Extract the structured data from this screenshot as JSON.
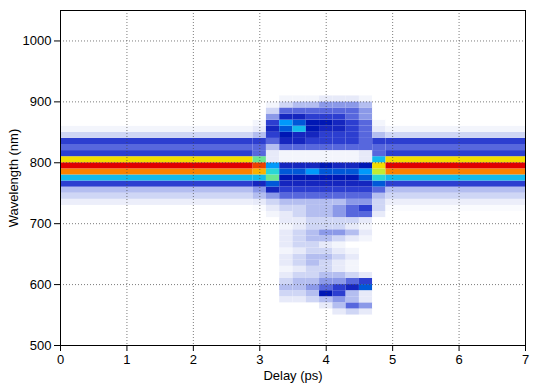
{
  "chart_data": {
    "type": "heatmap",
    "x_label": "Delay (ps)",
    "y_label": "Wavelength (nm)",
    "xlim": [
      0,
      7
    ],
    "ylim": [
      500,
      1050
    ],
    "xticks": [
      0,
      1,
      2,
      3,
      4,
      5,
      6,
      7
    ],
    "yticks": [
      500,
      600,
      700,
      800,
      900,
      1000
    ],
    "grid": true,
    "intensity_range": [
      0,
      1
    ],
    "delay_edges": [
      0,
      2.9,
      3.1,
      3.3,
      3.5,
      3.7,
      3.9,
      4.1,
      4.3,
      4.5,
      4.7,
      4.9,
      7
    ],
    "wavelength_edges": [
      500,
      550,
      560,
      570,
      580,
      590,
      600,
      610,
      620,
      630,
      640,
      650,
      660,
      670,
      680,
      690,
      700,
      710,
      720,
      730,
      740,
      750,
      760,
      770,
      780,
      790,
      800,
      810,
      820,
      830,
      840,
      850,
      860,
      870,
      880,
      890,
      900,
      910,
      1050
    ],
    "intensity": [
      [
        0,
        0,
        0,
        0,
        0,
        0,
        0,
        0,
        0,
        0,
        0,
        0
      ],
      [
        0,
        0,
        0,
        0,
        0,
        0,
        0,
        0.1,
        0.15,
        0.1,
        0,
        0
      ],
      [
        0,
        0,
        0,
        0,
        0,
        0,
        0.1,
        0.2,
        0.3,
        0.25,
        0,
        0
      ],
      [
        0,
        0,
        0,
        0.1,
        0.1,
        0.15,
        0.2,
        0.25,
        0.2,
        0.1,
        0,
        0
      ],
      [
        0,
        0,
        0,
        0.15,
        0.15,
        0.2,
        0.45,
        0.35,
        0.2,
        0.1,
        0,
        0
      ],
      [
        0,
        0,
        0,
        0.2,
        0.2,
        0.25,
        0.3,
        0.35,
        0.4,
        0.5,
        0,
        0
      ],
      [
        0,
        0,
        0,
        0.15,
        0.2,
        0.2,
        0.25,
        0.25,
        0.3,
        0.35,
        0,
        0
      ],
      [
        0,
        0,
        0,
        0.1,
        0.15,
        0.15,
        0.2,
        0.2,
        0.15,
        0.1,
        0,
        0
      ],
      [
        0,
        0,
        0,
        0.05,
        0.1,
        0.15,
        0.15,
        0.1,
        0.05,
        0,
        0,
        0
      ],
      [
        0,
        0,
        0,
        0.1,
        0.15,
        0.2,
        0.15,
        0.1,
        0.05,
        0,
        0,
        0
      ],
      [
        0,
        0,
        0,
        0.1,
        0.15,
        0.2,
        0.2,
        0.15,
        0.1,
        0,
        0,
        0
      ],
      [
        0,
        0,
        0,
        0.05,
        0.1,
        0.15,
        0.15,
        0.1,
        0.05,
        0,
        0,
        0
      ],
      [
        0,
        0,
        0,
        0.1,
        0.15,
        0.15,
        0.1,
        0.05,
        0,
        0,
        0,
        0
      ],
      [
        0,
        0,
        0,
        0.1,
        0.15,
        0.2,
        0.2,
        0.15,
        0.1,
        0.05,
        0,
        0
      ],
      [
        0,
        0,
        0,
        0.1,
        0.15,
        0.2,
        0.25,
        0.25,
        0.2,
        0.1,
        0,
        0
      ],
      [
        0,
        0,
        0,
        0.05,
        0.1,
        0.15,
        0.15,
        0.15,
        0.1,
        0.05,
        0,
        0
      ],
      [
        0,
        0,
        0,
        0.1,
        0.1,
        0.15,
        0.15,
        0.15,
        0.15,
        0.1,
        0,
        0
      ],
      [
        0,
        0,
        0.05,
        0.1,
        0.15,
        0.2,
        0.2,
        0.25,
        0.3,
        0.3,
        0.1,
        0
      ],
      [
        0,
        0.02,
        0.1,
        0.15,
        0.15,
        0.2,
        0.2,
        0.25,
        0.3,
        0.35,
        0.15,
        0.02
      ],
      [
        0.08,
        0.1,
        0.15,
        0.2,
        0.2,
        0.2,
        0.2,
        0.2,
        0.25,
        0.25,
        0.15,
        0.08
      ],
      [
        0.15,
        0.2,
        0.25,
        0.3,
        0.3,
        0.3,
        0.3,
        0.3,
        0.3,
        0.3,
        0.2,
        0.15
      ],
      [
        0.2,
        0.25,
        0.4,
        0.35,
        0.35,
        0.35,
        0.35,
        0.35,
        0.35,
        0.35,
        0.3,
        0.2
      ],
      [
        0.35,
        0.4,
        0.5,
        0.4,
        0.4,
        0.4,
        0.4,
        0.4,
        0.4,
        0.4,
        0.5,
        0.35
      ],
      [
        0.6,
        0.6,
        0.7,
        0.45,
        0.45,
        0.45,
        0.45,
        0.45,
        0.45,
        0.5,
        0.65,
        0.6
      ],
      [
        0.9,
        0.85,
        0.65,
        0.5,
        0.5,
        0.55,
        0.5,
        0.5,
        0.5,
        0.55,
        0.75,
        0.9
      ],
      [
        1,
        0.95,
        0.55,
        0.4,
        0.4,
        0.4,
        0.45,
        0.4,
        0.4,
        0.45,
        0.8,
        1
      ],
      [
        0.8,
        0.7,
        0.1,
        0.05,
        0.05,
        0.05,
        0.05,
        0.05,
        0.05,
        0.1,
        0.6,
        0.8
      ],
      [
        0.35,
        0.3,
        0.1,
        0.05,
        0.05,
        0.05,
        0.05,
        0.05,
        0.05,
        0.1,
        0.3,
        0.35
      ],
      [
        0.3,
        0.3,
        0.2,
        0.3,
        0.3,
        0.3,
        0.3,
        0.3,
        0.3,
        0.3,
        0.3,
        0.3
      ],
      [
        0.35,
        0.35,
        0.3,
        0.4,
        0.4,
        0.35,
        0.35,
        0.35,
        0.35,
        0.3,
        0.35,
        0.35
      ],
      [
        0.15,
        0.2,
        0.35,
        0.45,
        0.4,
        0.4,
        0.35,
        0.35,
        0.35,
        0.3,
        0.2,
        0.15
      ],
      [
        0.05,
        0.1,
        0.4,
        0.5,
        0.6,
        0.45,
        0.4,
        0.4,
        0.35,
        0.3,
        0.1,
        0.05
      ],
      [
        0,
        0.05,
        0.35,
        0.55,
        0.5,
        0.45,
        0.45,
        0.4,
        0.35,
        0.3,
        0.05,
        0
      ],
      [
        0,
        0,
        0.25,
        0.4,
        0.4,
        0.35,
        0.35,
        0.35,
        0.3,
        0.25,
        0,
        0
      ],
      [
        0,
        0,
        0.15,
        0.3,
        0.3,
        0.3,
        0.3,
        0.3,
        0.3,
        0.25,
        0,
        0
      ],
      [
        0,
        0,
        0.05,
        0.15,
        0.2,
        0.2,
        0.25,
        0.25,
        0.25,
        0.2,
        0,
        0
      ],
      [
        0,
        0,
        0,
        0.05,
        0.05,
        0.05,
        0.1,
        0.1,
        0.1,
        0.05,
        0,
        0
      ],
      [
        0,
        0,
        0,
        0,
        0,
        0,
        0,
        0,
        0,
        0,
        0,
        0
      ]
    ]
  }
}
